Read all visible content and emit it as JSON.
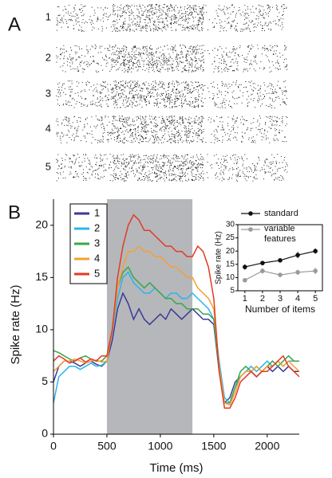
{
  "panel_a": {
    "label": "A",
    "rows": [
      "1",
      "2",
      "3",
      "4",
      "5"
    ]
  },
  "panel_b_label": "B",
  "chart_data": [
    {
      "type": "line",
      "x_label": "Time (ms)",
      "y_label": "Spike rate (Hz)",
      "xlim": [
        0,
        2300
      ],
      "ylim": [
        0,
        22.5
      ],
      "xticks": [
        0,
        500,
        1000,
        1500,
        2000
      ],
      "yticks": [
        0,
        5,
        10,
        15,
        20
      ],
      "shade": [
        500,
        1300
      ],
      "shade_color": "#b5b7bb",
      "legend": "upper left",
      "x": [
        0,
        50,
        100,
        150,
        200,
        250,
        300,
        350,
        400,
        450,
        500,
        550,
        600,
        650,
        700,
        750,
        800,
        850,
        900,
        950,
        1000,
        1050,
        1100,
        1150,
        1200,
        1250,
        1300,
        1350,
        1400,
        1450,
        1500,
        1550,
        1600,
        1650,
        1700,
        1750,
        1800,
        1850,
        1900,
        1950,
        2000,
        2050,
        2100,
        2150,
        2200,
        2250,
        2300
      ],
      "series": [
        {
          "name": "1",
          "color": "#3c3a96",
          "values": [
            5,
            6.5,
            7,
            7,
            6.8,
            6.5,
            6.8,
            7,
            6.7,
            6.5,
            7,
            9,
            12,
            13.5,
            12.5,
            11,
            12,
            11,
            10.5,
            11,
            11.5,
            11,
            12,
            11.5,
            11,
            11.5,
            12,
            11.5,
            11,
            11,
            10.5,
            6,
            3,
            3.5,
            5,
            5.5,
            6,
            6,
            5.5,
            6,
            6.5,
            6,
            6.5,
            6,
            6.5,
            6,
            6
          ]
        },
        {
          "name": "2",
          "color": "#2bb5e8",
          "values": [
            3,
            5.5,
            6,
            6.5,
            6.5,
            6.2,
            6.5,
            6.8,
            6.5,
            6.6,
            7,
            10,
            13,
            15,
            15.5,
            14.5,
            14,
            13.5,
            13.5,
            14,
            13.5,
            13,
            13.5,
            13.5,
            13,
            13,
            13.5,
            13,
            12.5,
            12,
            11,
            7,
            3.5,
            3,
            4.5,
            5.5,
            6,
            6.5,
            6,
            6.5,
            7,
            6.5,
            7,
            6.5,
            7,
            7,
            7
          ]
        },
        {
          "name": "3",
          "color": "#3aa64a",
          "values": [
            8,
            7.8,
            7.5,
            7.2,
            7,
            7.3,
            7.5,
            7.2,
            7,
            7,
            7.5,
            10,
            14,
            15.5,
            16,
            15,
            14.5,
            14,
            14.5,
            14,
            13.5,
            13,
            13,
            12.5,
            12.5,
            12,
            12,
            12,
            11.5,
            11.5,
            11,
            6,
            3,
            3,
            4.5,
            6,
            6.5,
            6,
            6.5,
            6,
            6.5,
            7,
            6.5,
            7,
            7.5,
            7,
            7
          ]
        },
        {
          "name": "4",
          "color": "#f5a032",
          "values": [
            6,
            6.5,
            7,
            7,
            7.2,
            7,
            6.8,
            7,
            7.1,
            6.9,
            7,
            10,
            14,
            16,
            17.5,
            17.5,
            18,
            17.5,
            17.5,
            17,
            17,
            16.5,
            16,
            16,
            15.5,
            15,
            15,
            14,
            13.5,
            13,
            12,
            6.5,
            3,
            2.8,
            4,
            5.5,
            6,
            6,
            6.5,
            6,
            6.5,
            6.5,
            7,
            6.5,
            7,
            6.5,
            6
          ]
        },
        {
          "name": "5",
          "color": "#e43a24",
          "values": [
            7,
            7.5,
            7.2,
            6.8,
            7,
            7.3,
            6.9,
            7.2,
            7,
            7.5,
            7.5,
            10,
            15,
            18,
            20,
            21,
            20.5,
            19.5,
            19.5,
            19,
            18.5,
            18,
            18,
            17.5,
            17.5,
            17,
            17,
            18,
            17.5,
            16,
            13,
            6,
            2.5,
            2.5,
            3.5,
            5,
            5.5,
            6,
            5.5,
            6,
            6,
            6.5,
            7,
            7.5,
            6.5,
            6,
            5.5
          ]
        }
      ]
    },
    {
      "type": "errorline",
      "x_label": "Number of items",
      "y_label": "Spike rate (Hz)",
      "xlim": [
        0.6,
        5.4
      ],
      "ylim": [
        5,
        30
      ],
      "xticks": [
        1,
        2,
        3,
        4,
        5
      ],
      "yticks": [
        5,
        10,
        15,
        20,
        25,
        30
      ],
      "x": [
        1,
        2,
        3,
        4,
        5
      ],
      "series": [
        {
          "name": "standard",
          "color": "#111111",
          "values": [
            14,
            15.5,
            16.5,
            18.5,
            20
          ],
          "errors": [
            1,
            0.8,
            0.8,
            1.2,
            1
          ]
        },
        {
          "name": "variable features",
          "color": "#9a9a9a",
          "values": [
            9,
            12.5,
            11,
            12,
            12.5
          ],
          "errors": [
            0.8,
            1,
            0.8,
            1,
            1.2
          ]
        }
      ]
    }
  ]
}
